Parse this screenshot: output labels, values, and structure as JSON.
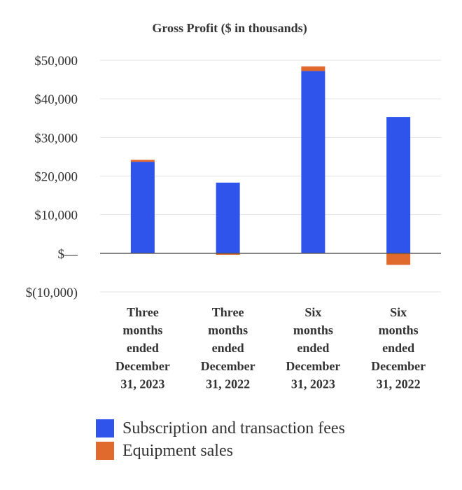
{
  "chart_data": {
    "type": "bar",
    "stacked": true,
    "title": "Gross Profit ($ in thousands)",
    "categories": [
      [
        "Three",
        "months",
        "ended",
        "December",
        "31, 2023"
      ],
      [
        "Three",
        "months",
        "ended",
        "December",
        "31, 2022"
      ],
      [
        "Six",
        "months",
        "ended",
        "December",
        "31, 2023"
      ],
      [
        "Six",
        "months",
        "ended",
        "December",
        "31, 2022"
      ]
    ],
    "series": [
      {
        "name": "Subscription and transaction fees",
        "color": "#2f54eb",
        "values": [
          23700,
          18300,
          47200,
          35300
        ]
      },
      {
        "name": "Equipment sales",
        "color": "#e0692e",
        "values": [
          500,
          -400,
          1200,
          -3000
        ]
      }
    ],
    "ylim": [
      -10000,
      50000
    ],
    "yticks": [
      50000,
      40000,
      30000,
      20000,
      10000,
      0,
      -10000
    ],
    "ytick_labels": [
      "$50,000",
      "$40,000",
      "$30,000",
      "$20,000",
      "$10,000",
      "$—",
      "$(10,000)"
    ],
    "grid": true,
    "legend_position": "bottom-left"
  }
}
